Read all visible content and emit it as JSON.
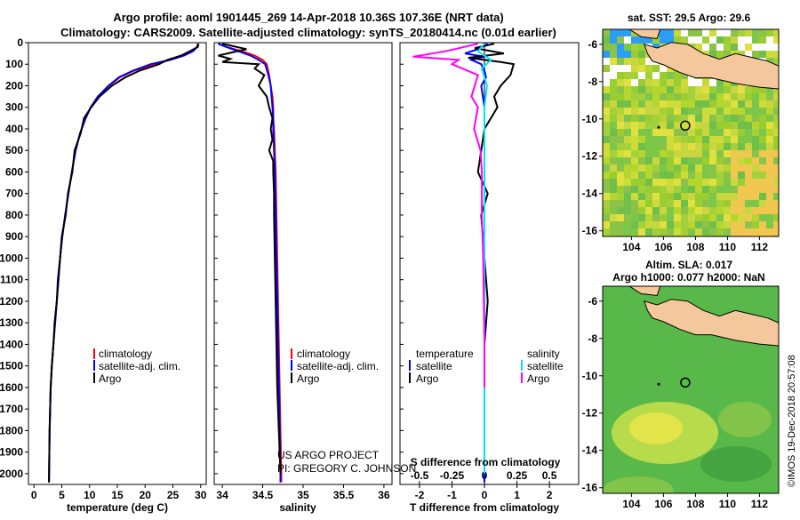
{
  "header": {
    "line1": "Argo profile: aoml 1901445_269 14-Apr-2018 10.36S 107.36E (NRT data)",
    "line2": "Climatology: CARS2009. Satellite-adjusted climatology: synTS_20180414.nc (0.01d earlier)"
  },
  "colors": {
    "climatology": "#ff0000",
    "satellite": "#0000ff",
    "argo": "#000000",
    "sal_sat": "#00e5ff",
    "sal_argo": "#ff00ff"
  },
  "chart_data": [
    {
      "type": "line",
      "id": "temperature",
      "xlabel": "temperature (deg C)",
      "ylabel": "",
      "xlim": [
        -1,
        31
      ],
      "ylim": [
        2050,
        0
      ],
      "xticks": [
        0,
        5,
        10,
        15,
        20,
        25,
        30
      ],
      "yticks": [
        0,
        100,
        200,
        300,
        400,
        500,
        600,
        700,
        800,
        900,
        1000,
        1100,
        1200,
        1300,
        1400,
        1500,
        1600,
        1700,
        1800,
        1900,
        2000
      ],
      "legend": [
        "climatology",
        "satellite-adj. clim.",
        "Argo"
      ],
      "series": [
        {
          "name": "climatology",
          "color": "#ff0000",
          "x": [
            29.5,
            29.3,
            28.6,
            27.0,
            24.5,
            21.5,
            18.0,
            15.5,
            13.5,
            11.5,
            10.2,
            9.3,
            8.3,
            7.5,
            6.8,
            6.2,
            5.6,
            5.1,
            4.7,
            4.4,
            4.1,
            3.8,
            3.5,
            3.2,
            3.0,
            2.8,
            2.7
          ],
          "y": [
            5,
            20,
            40,
            60,
            80,
            100,
            130,
            160,
            200,
            250,
            300,
            350,
            420,
            500,
            600,
            700,
            800,
            900,
            1000,
            1100,
            1200,
            1300,
            1400,
            1500,
            1600,
            1800,
            2040
          ]
        },
        {
          "name": "satellite-adj. clim.",
          "color": "#0000ff",
          "x": [
            29.6,
            29.4,
            28.6,
            27.0,
            24.5,
            21.0,
            17.8,
            15.3,
            13.4,
            11.5,
            10.2,
            9.3,
            8.3,
            7.5,
            6.8,
            6.2,
            5.6,
            5.1,
            4.7,
            4.4,
            4.1,
            3.8,
            3.5,
            3.2,
            3.0,
            2.8,
            2.7
          ],
          "y": [
            5,
            20,
            40,
            60,
            80,
            100,
            130,
            160,
            200,
            250,
            300,
            350,
            420,
            500,
            600,
            700,
            800,
            900,
            1000,
            1100,
            1200,
            1300,
            1400,
            1500,
            1600,
            1800,
            2040
          ]
        },
        {
          "name": "Argo",
          "color": "#000000",
          "x": [
            29.6,
            29.5,
            28.0,
            26.5,
            24.0,
            22.5,
            19.0,
            16.5,
            14.0,
            11.8,
            10.3,
            9.0,
            8.4,
            7.3,
            6.9,
            6.1,
            5.7,
            5.0,
            4.7,
            4.3,
            4.1,
            3.7,
            3.5,
            3.2,
            3.0,
            2.8,
            2.7
          ],
          "y": [
            5,
            20,
            40,
            60,
            80,
            100,
            130,
            160,
            200,
            250,
            300,
            350,
            420,
            500,
            600,
            700,
            800,
            900,
            1000,
            1100,
            1200,
            1300,
            1400,
            1500,
            1600,
            1800,
            2040
          ]
        }
      ]
    },
    {
      "type": "line",
      "id": "salinity",
      "xlabel": "salinity",
      "xlim": [
        33.9,
        36.1
      ],
      "ylim": [
        2050,
        0
      ],
      "xticks": [
        34,
        34.5,
        35,
        35.5,
        36
      ],
      "xticklabels": [
        "34",
        "34.5",
        "35",
        "35.5",
        "36"
      ],
      "legend": [
        "climatology",
        "satellite-adj. clim.",
        "Argo"
      ],
      "annotation": [
        "US ARGO PROJECT",
        "PI: GREGORY C. JOHNSON"
      ],
      "series": [
        {
          "name": "climatology",
          "color": "#ff0000",
          "x": [
            33.95,
            34.05,
            34.25,
            34.4,
            34.5,
            34.55,
            34.58,
            34.6,
            34.62,
            34.63,
            34.63,
            34.64,
            34.65,
            34.66,
            34.67,
            34.68,
            34.69,
            34.7,
            34.71,
            34.72,
            34.73,
            34.73
          ],
          "y": [
            5,
            20,
            40,
            60,
            80,
            100,
            150,
            200,
            250,
            300,
            350,
            400,
            500,
            600,
            800,
            1000,
            1200,
            1400,
            1600,
            1800,
            2000,
            2040
          ]
        },
        {
          "name": "satellite-adj. clim.",
          "color": "#0000ff",
          "x": [
            33.95,
            34.05,
            34.2,
            34.35,
            34.45,
            34.53,
            34.57,
            34.6,
            34.61,
            34.62,
            34.63,
            34.63,
            34.64,
            34.65,
            34.66,
            34.67,
            34.68,
            34.69,
            34.7,
            34.71,
            34.72,
            34.72
          ],
          "y": [
            5,
            20,
            40,
            60,
            80,
            100,
            150,
            200,
            250,
            300,
            350,
            400,
            500,
            600,
            800,
            1000,
            1200,
            1400,
            1600,
            1800,
            2000,
            2040
          ]
        },
        {
          "name": "Argo",
          "color": "#000000",
          "x": [
            34.0,
            34.3,
            33.95,
            34.1,
            34.0,
            34.45,
            34.4,
            34.52,
            34.45,
            34.55,
            34.58,
            34.62,
            34.6,
            34.62,
            34.58,
            34.63,
            34.63,
            34.64,
            34.64,
            34.65,
            34.66,
            34.67,
            34.68,
            34.7,
            34.72
          ],
          "y": [
            5,
            30,
            60,
            75,
            90,
            100,
            120,
            150,
            200,
            250,
            300,
            350,
            400,
            450,
            500,
            550,
            600,
            700,
            800,
            1000,
            1200,
            1400,
            1600,
            1800,
            2000
          ]
        }
      ]
    },
    {
      "type": "line",
      "id": "difference",
      "xlabel": "T difference from climatology",
      "x2label": "S difference from climatology",
      "xlim": [
        -2.6,
        2.9
      ],
      "ylim": [
        2050,
        0
      ],
      "xticks": [
        -2,
        -1,
        0,
        1,
        2
      ],
      "x2ticks": [
        -0.5,
        -0.25,
        0,
        0.25,
        0.5
      ],
      "x2ticklabels": [
        "-0.5",
        "-0.25",
        "0",
        "0.25",
        "0.5"
      ],
      "legend_left_title": "temperature",
      "legend_right_title": "salinity",
      "legend_left": [
        "satellite",
        "Argo"
      ],
      "legend_right": [
        "satellite",
        "Argo"
      ],
      "series": [
        {
          "name": "temperature satellite",
          "color": "#0000ff",
          "x": [
            0.1,
            -0.2,
            -0.6,
            0.0,
            -0.4,
            -0.1,
            0.0,
            0.05,
            -0.1,
            0.0,
            0.0,
            0.0,
            0.0,
            0.0,
            0.0,
            0.0,
            0.0
          ],
          "y": [
            5,
            30,
            50,
            65,
            80,
            100,
            130,
            160,
            200,
            300,
            400,
            600,
            800,
            1000,
            1400,
            1800,
            2040
          ]
        },
        {
          "name": "temperature Argo",
          "color": "#000000",
          "x": [
            0.3,
            -0.3,
            0.6,
            -0.5,
            0.5,
            0.9,
            0.8,
            0.5,
            0.3,
            0.4,
            0.0,
            -0.1,
            -0.2,
            0.1,
            -0.1,
            0.0,
            0.1,
            0.0,
            0.0
          ],
          "y": [
            5,
            25,
            50,
            70,
            90,
            100,
            150,
            200,
            250,
            300,
            400,
            500,
            600,
            700,
            800,
            1000,
            1200,
            1400,
            1600
          ]
        },
        {
          "name": "salinity satellite",
          "color": "#00e5ff",
          "x": [
            0.0,
            -0.05,
            0.05,
            -0.02,
            0.02,
            0.0,
            0.0,
            0.0,
            0.0,
            0.0
          ],
          "y": [
            5,
            40,
            80,
            120,
            200,
            300,
            500,
            800,
            1200,
            2000
          ]
        },
        {
          "name": "salinity Argo",
          "color": "#ff00ff",
          "x": [
            -0.05,
            -0.3,
            -0.55,
            -0.2,
            -0.25,
            -0.05,
            -0.1,
            -0.05,
            -0.08,
            -0.03,
            -0.02,
            -0.02,
            -0.01,
            0.0,
            0.0
          ],
          "y": [
            5,
            40,
            65,
            80,
            100,
            150,
            250,
            300,
            400,
            500,
            600,
            800,
            1000,
            1400,
            1600
          ]
        }
      ]
    },
    {
      "type": "heatmap",
      "id": "sst-map",
      "title": "sat. SST: 29.5 Argo: 29.6",
      "xlim": [
        102.2,
        113.2
      ],
      "ylim": [
        -16.3,
        -5.2
      ],
      "xticks": [
        104,
        106,
        108,
        110,
        112
      ],
      "yticks": [
        -6,
        -8,
        -10,
        -12,
        -14,
        -16
      ],
      "profile": {
        "lon": 107.36,
        "lat": -10.36
      }
    },
    {
      "type": "heatmap",
      "id": "sla-map",
      "title": "Altim. SLA: 0.017",
      "subtitle": "Argo h1000: 0.077 h2000: NaN",
      "xlim": [
        102.2,
        113.2
      ],
      "ylim": [
        -16.3,
        -5.2
      ],
      "xticks": [
        104,
        106,
        108,
        110,
        112
      ],
      "yticks": [
        -6,
        -8,
        -10,
        -12,
        -14,
        -16
      ],
      "profile": {
        "lon": 107.36,
        "lat": -10.36
      }
    }
  ],
  "side_label": "©IMOS 19-Dec-2018 20:57:08"
}
